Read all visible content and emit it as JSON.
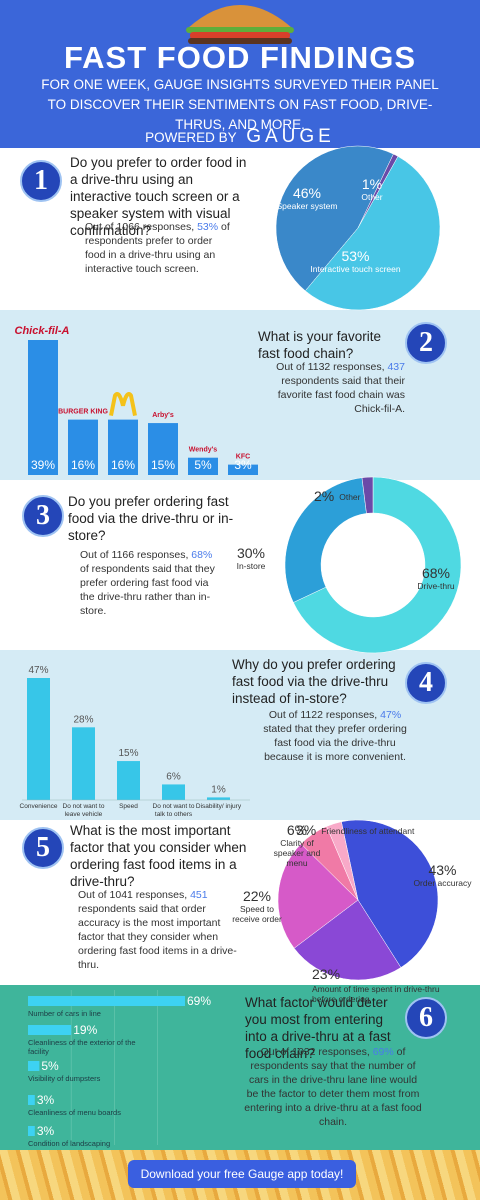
{
  "header": {
    "title": "FAST FOOD FINDINGS",
    "subtitle": "FOR ONE WEEK, GAUGE INSIGHTS SURVEYED THEIR PANEL TO DISCOVER THEIR SENTIMENTS ON FAST FOOD, DRIVE-THRUS, AND MORE.",
    "powered_by": "POWERED BY",
    "brand": "GAUGE"
  },
  "sections": [
    {
      "number": "1",
      "question": "Do you prefer to order food in a drive-thru using an interactive touch screen or a speaker system with visual confirmation?",
      "summary_start": "Out of 1066 responses,",
      "highlight": "53%",
      "summary_end": "of respondents prefer to order food in a drive-thru using an interactive touch screen."
    },
    {
      "number": "2",
      "question": "What is your favorite fast food chain?",
      "summary_start": "Out of 1132 responses,",
      "highlight": "437",
      "summary_end": "respondents said that their favorite fast food chain was Chick-fil-A."
    },
    {
      "number": "3",
      "question": "Do you prefer ordering fast food via the drive-thru or in-store?",
      "summary_start": "Out of 1166 responses,",
      "highlight": "68%",
      "summary_end": "of respondents said that they prefer ordering fast food via the drive-thru rather than in-store."
    },
    {
      "number": "4",
      "question": "Why do you prefer ordering fast food via the drive-thru instead of in-store?",
      "summary_start": "Out of 1122 responses,",
      "highlight": "47%",
      "summary_end": "stated that they prefer ordering fast food via the drive-thru because it is more convenient."
    },
    {
      "number": "5",
      "question": "What is the most important factor that you consider when ordering fast food items in a drive-thru?",
      "summary_start": "Out of 1041 responses,",
      "highlight": "451",
      "summary_end": "respondents said that order accuracy is the most important factor that they consider when ordering fast food items in a drive-thru."
    },
    {
      "number": "6",
      "question": "What factor would deter you most from entering into a drive-thru at a fast food chain?",
      "summary_start": "Out of 1032 responses,",
      "highlight": "69%",
      "summary_end": "of respondents say that the number of cars in the drive-thru lane line would be the factor to deter them most from entering into a drive-thru at a fast food chain."
    }
  ],
  "chart_data": [
    {
      "type": "pie",
      "categories": [
        "Speaker system",
        "Other",
        "Interactive touch screen"
      ],
      "values": [
        46,
        1,
        53
      ],
      "value_labels": [
        "46%",
        "1%",
        "53%"
      ],
      "colors": [
        "#3a88c9",
        "#6a4aa8",
        "#48c6e6"
      ]
    },
    {
      "type": "bar",
      "categories": [
        "Chick-fil-A",
        "BURGER KING",
        null,
        "Arby's",
        "Wendy's",
        "KFC"
      ],
      "values": [
        39,
        16,
        16,
        15,
        5,
        3
      ],
      "value_labels": [
        "39%",
        "16%",
        "16%",
        "15%",
        "5%",
        "3%"
      ],
      "color": "#2b8ee6"
    },
    {
      "type": "donut",
      "categories": [
        "Drive-thru",
        "In-store",
        "Other"
      ],
      "values": [
        68,
        30,
        2
      ],
      "value_labels": [
        "68%",
        "30%",
        "2%"
      ],
      "colors": [
        "#4fd9e2",
        "#2c9fd8",
        "#6a4aa8"
      ]
    },
    {
      "type": "bar",
      "categories": [
        "Convenience",
        "Do not want to leave vehicle",
        "Speed",
        "Do not want to talk to others",
        "Disability/ injury"
      ],
      "values": [
        47,
        28,
        15,
        6,
        1
      ],
      "value_labels": [
        "47%",
        "28%",
        "15%",
        "6%",
        "1%"
      ],
      "color": "#37c6e8"
    },
    {
      "type": "pie",
      "categories": [
        "Order accuracy",
        "Amount of time spent in drive-thru before ordering",
        "Speed to receive order",
        "Clarity of speaker and menu",
        "Friendliness of attendant"
      ],
      "values": [
        43,
        23,
        22,
        6,
        3
      ],
      "value_labels": [
        "43%",
        "23%",
        "22%",
        "6%",
        "3%"
      ],
      "colors": [
        "#3d4fd9",
        "#8a48d6",
        "#d65ac8",
        "#f07aa6",
        "#f8a9c8"
      ]
    },
    {
      "type": "hbar",
      "categories": [
        "Number of cars in line",
        "Cleanliness of the exterior of the facility",
        "Visibility of dumpsters",
        "Cleanliness of menu boards",
        "Condition of landscaping"
      ],
      "values": [
        69,
        19,
        5,
        3,
        3
      ],
      "value_labels": [
        "69%",
        "19%",
        "5%",
        "3%",
        "3%"
      ],
      "color": "#3dd2f2"
    }
  ],
  "footer": {
    "button": "Download your free Gauge app today!"
  }
}
